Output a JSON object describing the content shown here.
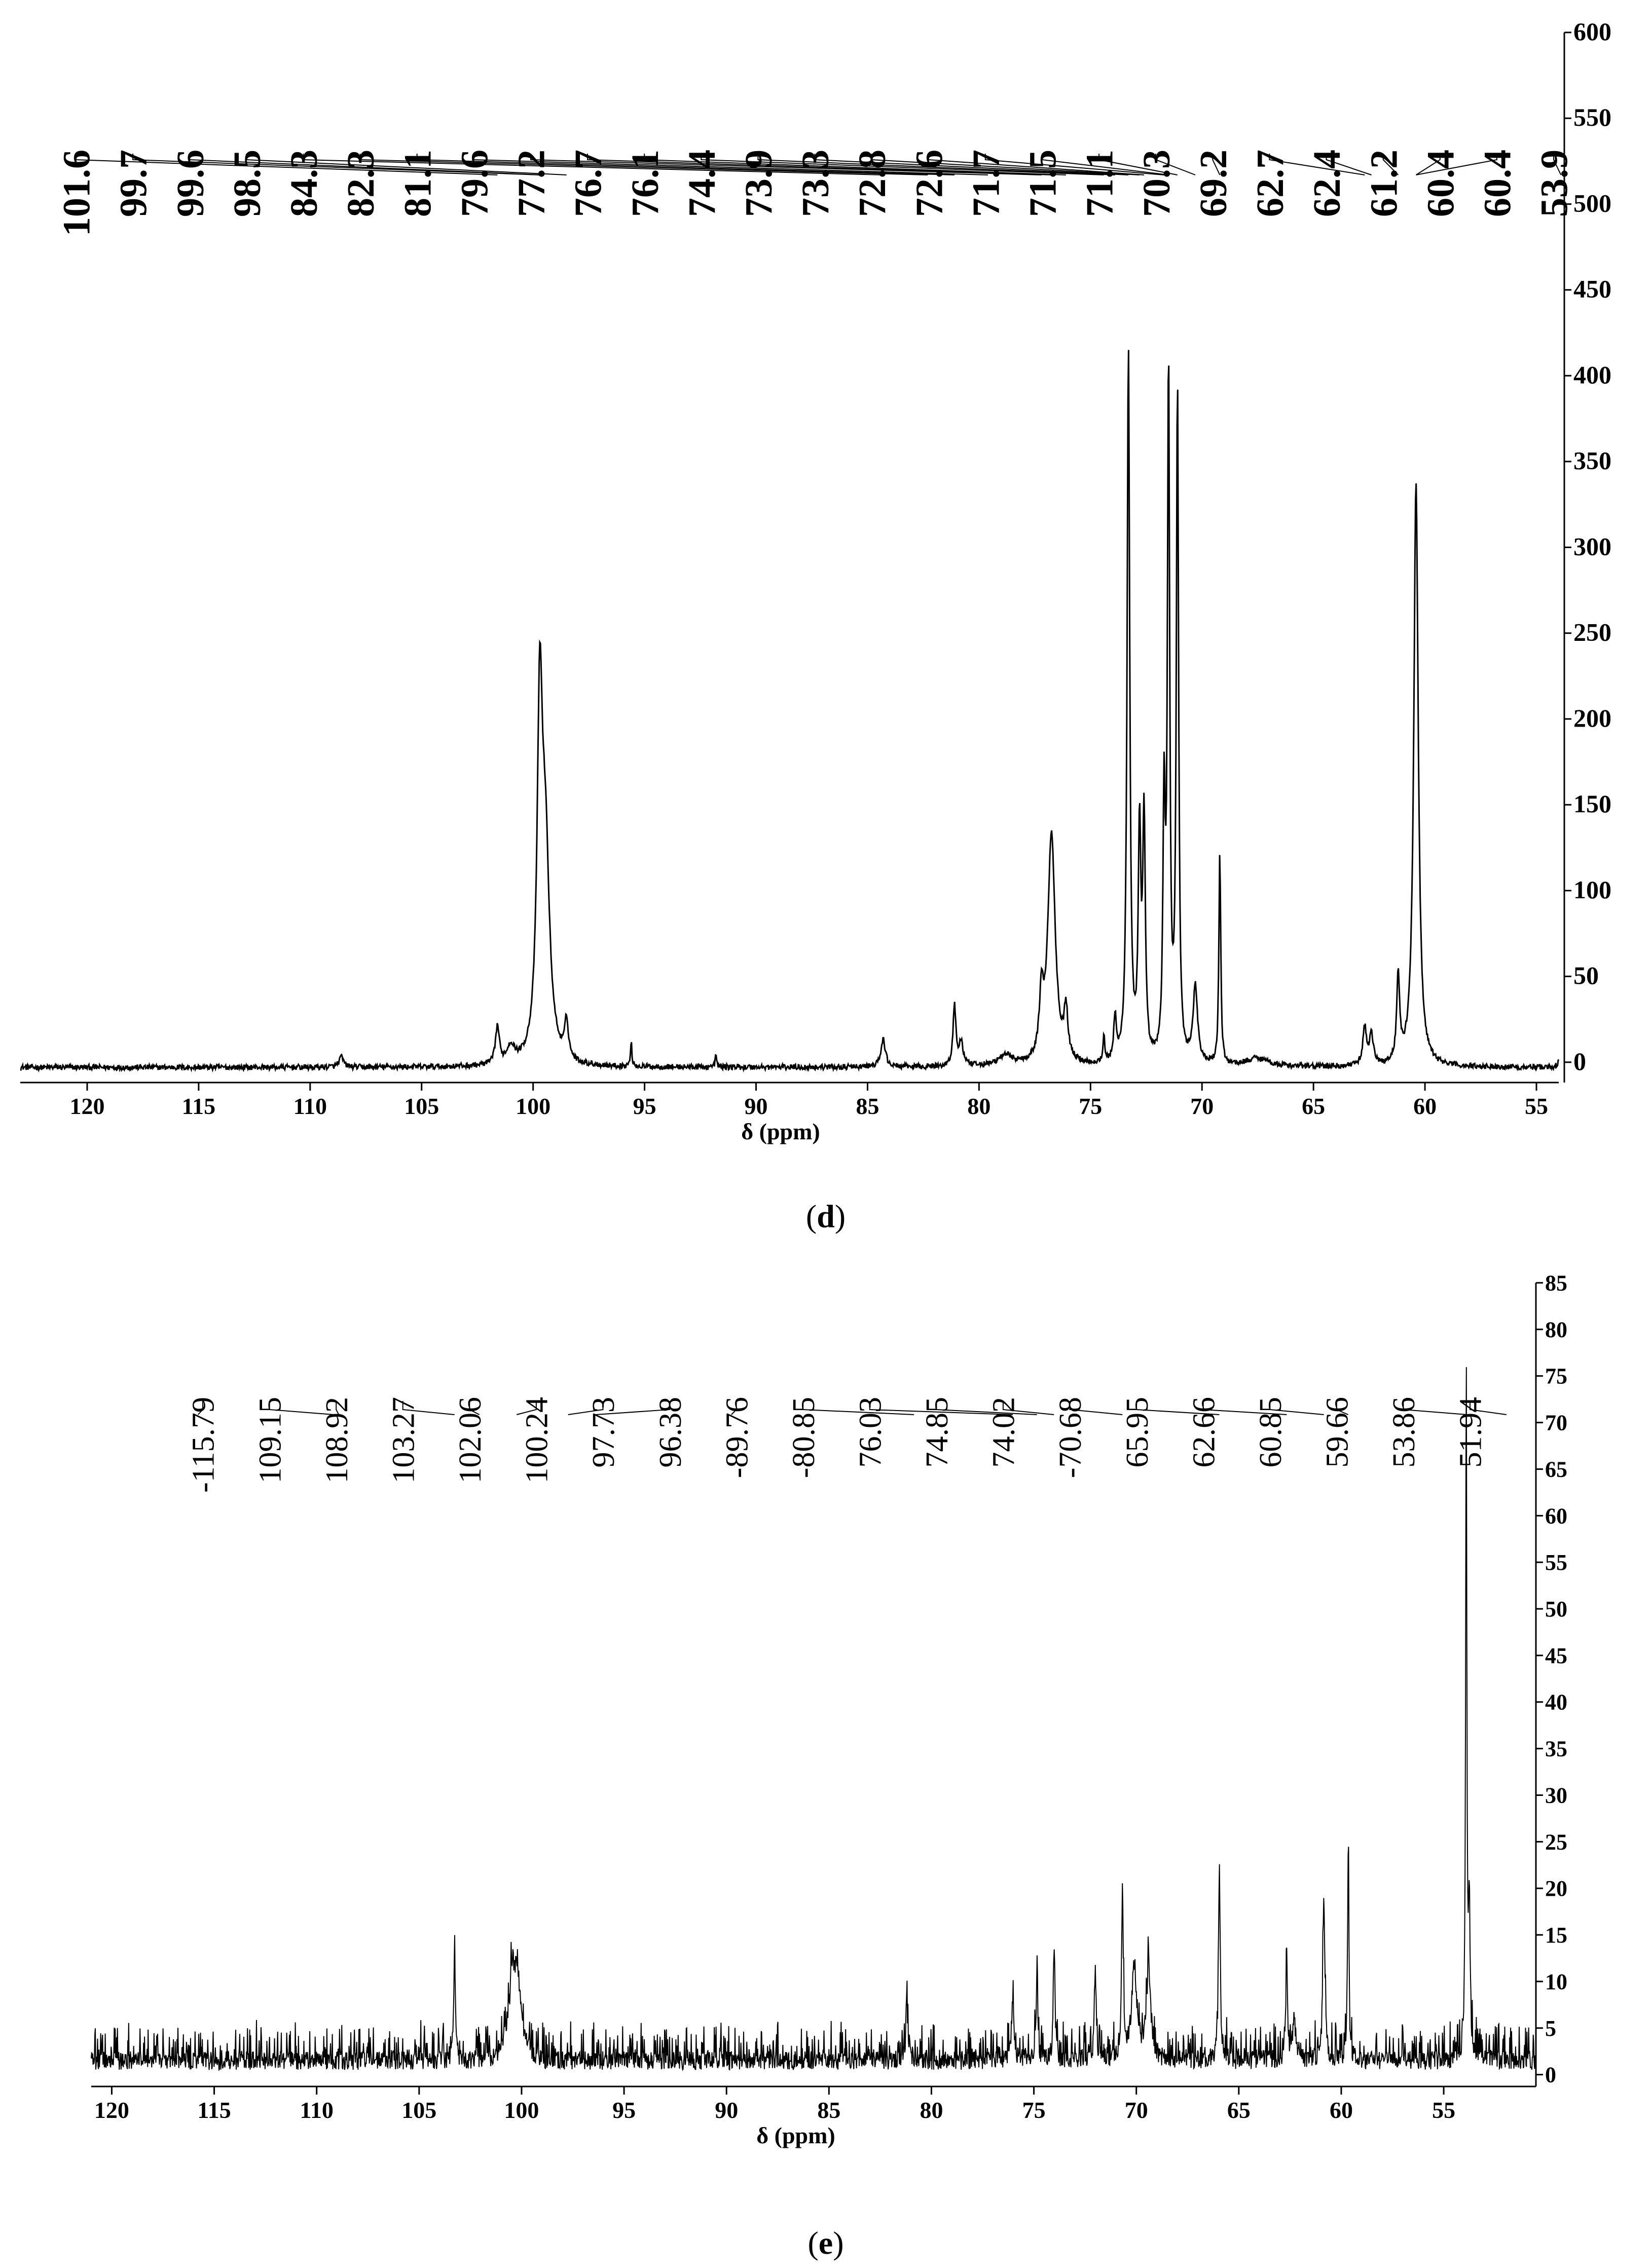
{
  "chart_data": [
    {
      "panel_label": "d",
      "type": "line",
      "xlabel": "δ (ppm)",
      "xlim": [
        123,
        54
      ],
      "ylim": [
        -8,
        600
      ],
      "x_ticks": [
        120,
        115,
        110,
        105,
        100,
        95,
        90,
        85,
        80,
        75,
        70,
        65,
        60,
        55
      ],
      "y_ticks": [
        0,
        50,
        100,
        150,
        200,
        250,
        300,
        350,
        400,
        450,
        500,
        550,
        600
      ],
      "peak_labels": [
        "101.6",
        "99.7",
        "99.6",
        "98.5",
        "84.3",
        "82.3",
        "81.1",
        "79.6",
        "77.2",
        "76.7",
        "76.1",
        "74.4",
        "73.9",
        "73.3",
        "72.8",
        "72.6",
        "71.7",
        "71.5",
        "71.1",
        "70.3",
        "69.2",
        "62.7",
        "62.4",
        "61.2",
        "60.4",
        "60.4",
        "53.9"
      ],
      "peaks": [
        {
          "x": 108.6,
          "y": 6,
          "w": 0.12
        },
        {
          "x": 101.6,
          "y": 22,
          "w": 0.1
        },
        {
          "x": 101.0,
          "y": 10,
          "w": 0.2
        },
        {
          "x": 99.7,
          "y": 195,
          "w": 0.14
        },
        {
          "x": 99.45,
          "y": 120,
          "w": 0.22
        },
        {
          "x": 98.5,
          "y": 22,
          "w": 0.1
        },
        {
          "x": 95.6,
          "y": 14,
          "w": 0.04
        },
        {
          "x": 91.8,
          "y": 7,
          "w": 0.04
        },
        {
          "x": 84.3,
          "y": 16,
          "w": 0.12
        },
        {
          "x": 81.1,
          "y": 35,
          "w": 0.08
        },
        {
          "x": 80.8,
          "y": 14,
          "w": 0.1
        },
        {
          "x": 78.8,
          "y": 6,
          "w": 0.4
        },
        {
          "x": 77.2,
          "y": 35,
          "w": 0.1
        },
        {
          "x": 76.75,
          "y": 135,
          "w": 0.2
        },
        {
          "x": 76.1,
          "y": 28,
          "w": 0.1
        },
        {
          "x": 74.4,
          "y": 15,
          "w": 0.05
        },
        {
          "x": 73.9,
          "y": 25,
          "w": 0.07
        },
        {
          "x": 73.3,
          "y": 415,
          "w": 0.07
        },
        {
          "x": 72.8,
          "y": 130,
          "w": 0.07
        },
        {
          "x": 72.6,
          "y": 138,
          "w": 0.07
        },
        {
          "x": 71.7,
          "y": 145,
          "w": 0.06
        },
        {
          "x": 71.5,
          "y": 400,
          "w": 0.06
        },
        {
          "x": 71.1,
          "y": 392,
          "w": 0.06
        },
        {
          "x": 70.3,
          "y": 45,
          "w": 0.12
        },
        {
          "x": 69.2,
          "y": 122,
          "w": 0.05
        },
        {
          "x": 67.5,
          "y": 5,
          "w": 0.6
        },
        {
          "x": 62.7,
          "y": 22,
          "w": 0.1
        },
        {
          "x": 62.4,
          "y": 18,
          "w": 0.1
        },
        {
          "x": 61.2,
          "y": 50,
          "w": 0.08
        },
        {
          "x": 60.4,
          "y": 340,
          "w": 0.12
        },
        {
          "x": 53.9,
          "y": 18,
          "w": 0.05
        }
      ]
    },
    {
      "panel_label": "e",
      "type": "line",
      "xlabel": "δ (ppm)",
      "xlim": [
        121,
        50.5
      ],
      "ylim": [
        -1,
        85
      ],
      "x_ticks": [
        120,
        115,
        110,
        105,
        100,
        95,
        90,
        85,
        80,
        75,
        70,
        65,
        60,
        55
      ],
      "y_ticks": [
        0,
        5,
        10,
        15,
        20,
        25,
        30,
        35,
        40,
        45,
        50,
        55,
        60,
        65,
        70,
        75,
        80,
        85
      ],
      "peak_labels": [
        "-115.79",
        "109.15",
        "108.92",
        "103.27",
        "102.06",
        "100.24",
        "97.73",
        "96.38",
        "-89.76",
        "-80.85",
        "76.03",
        "74.85",
        "74.02",
        "-70.68",
        "65.95",
        "62.66",
        "60.85",
        "59.66",
        "53.86",
        "51.94"
      ],
      "peaks": [
        {
          "x": 103.27,
          "y": 11,
          "w": 0.05
        },
        {
          "x": 100.45,
          "y": 7,
          "w": 0.15
        },
        {
          "x": 100.2,
          "y": 6,
          "w": 0.15
        },
        {
          "x": 81.2,
          "y": 7,
          "w": 0.05
        },
        {
          "x": 76.03,
          "y": 6,
          "w": 0.08
        },
        {
          "x": 74.85,
          "y": 9,
          "w": 0.05
        },
        {
          "x": 74.02,
          "y": 11,
          "w": 0.05
        },
        {
          "x": 72.0,
          "y": 10,
          "w": 0.05
        },
        {
          "x": 70.68,
          "y": 15,
          "w": 0.06
        },
        {
          "x": 70.1,
          "y": 10,
          "w": 0.15
        },
        {
          "x": 69.4,
          "y": 10,
          "w": 0.12
        },
        {
          "x": 65.95,
          "y": 20,
          "w": 0.05
        },
        {
          "x": 62.66,
          "y": 11,
          "w": 0.05
        },
        {
          "x": 62.3,
          "y": 5,
          "w": 0.08
        },
        {
          "x": 60.85,
          "y": 17,
          "w": 0.06
        },
        {
          "x": 59.66,
          "y": 22,
          "w": 0.04
        },
        {
          "x": 53.9,
          "y": 75,
          "w": 0.035
        },
        {
          "x": 53.75,
          "y": 15,
          "w": 0.05
        }
      ]
    }
  ]
}
